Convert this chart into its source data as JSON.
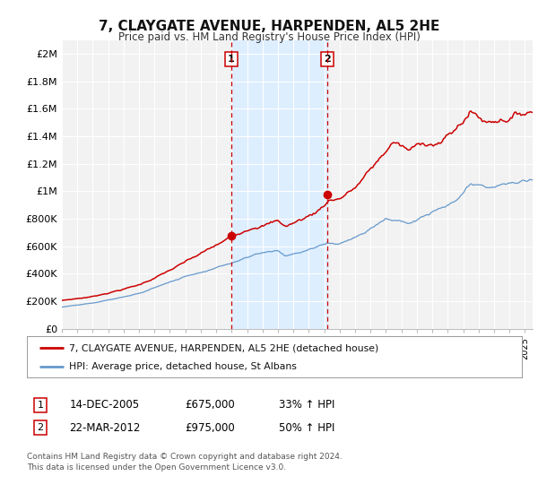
{
  "title": "7, CLAYGATE AVENUE, HARPENDEN, AL5 2HE",
  "subtitle": "Price paid vs. HM Land Registry's House Price Index (HPI)",
  "legend_line1": "7, CLAYGATE AVENUE, HARPENDEN, AL5 2HE (detached house)",
  "legend_line2": "HPI: Average price, detached house, St Albans",
  "transaction1_date": "14-DEC-2005",
  "transaction1_price": "£675,000",
  "transaction1_hpi": "33% ↑ HPI",
  "transaction2_date": "22-MAR-2012",
  "transaction2_price": "£975,000",
  "transaction2_hpi": "50% ↑ HPI",
  "footer": "Contains HM Land Registry data © Crown copyright and database right 2024.\nThis data is licensed under the Open Government Licence v3.0.",
  "red_line_color": "#cc0000",
  "blue_line_color": "#6699cc",
  "shade_color": "#ddeeff",
  "marker_color": "#cc0000",
  "bg_color": "#f2f2f2",
  "grid_color": "#ffffff",
  "ylim_max": 2100000,
  "yticks": [
    0,
    200000,
    400000,
    600000,
    800000,
    1000000,
    1200000,
    1400000,
    1600000,
    1800000,
    2000000
  ],
  "ytick_labels": [
    "£0",
    "£200K",
    "£400K",
    "£600K",
    "£800K",
    "£1M",
    "£1.2M",
    "£1.4M",
    "£1.6M",
    "£1.8M",
    "£2M"
  ],
  "transaction1_x": 2005.96,
  "transaction1_y": 675000,
  "transaction2_x": 2012.22,
  "transaction2_y": 975000,
  "shade_x1": 2005.96,
  "shade_x2": 2012.22,
  "xlim_min": 1995.0,
  "xlim_max": 2025.5
}
